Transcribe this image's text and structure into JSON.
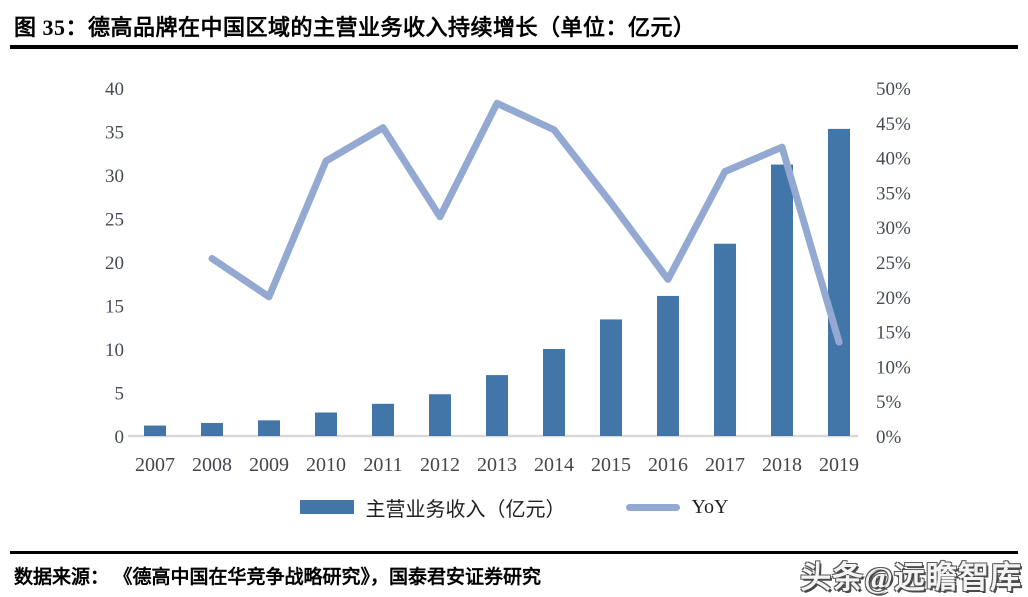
{
  "figure": {
    "title": "图 35：德高品牌在中国区域的主营业务收入持续增长（单位：亿元）",
    "source_label": "数据来源：",
    "source_text": "《德高中国在华竞争战略研究》，国泰君安证券研究",
    "watermark": "头条@远瞻智库"
  },
  "chart_data": {
    "type": "bar",
    "subtype": "combo-bar-line-dual-axis",
    "title": "德高品牌在中国区域的主营业务收入持续增长（单位：亿元）",
    "categories": [
      "2007",
      "2008",
      "2009",
      "2010",
      "2011",
      "2012",
      "2013",
      "2014",
      "2015",
      "2016",
      "2017",
      "2018",
      "2019"
    ],
    "series": [
      {
        "name": "主营业务收入（亿元）",
        "type": "bar",
        "axis": "left",
        "color": "#4376a8",
        "values": [
          1.2,
          1.5,
          1.8,
          2.7,
          3.7,
          4.8,
          7.0,
          10.0,
          13.4,
          16.1,
          22.1,
          31.2,
          35.3
        ]
      },
      {
        "name": "YoY",
        "type": "line",
        "axis": "right",
        "unit": "%",
        "color": "#94a9d2",
        "values": [
          null,
          25.5,
          20.0,
          39.5,
          44.3,
          31.5,
          47.8,
          44.0,
          33.5,
          22.5,
          38.0,
          41.5,
          13.5
        ]
      }
    ],
    "left_axis": {
      "min": 0,
      "max": 40,
      "step": 5,
      "ticks": [
        "0",
        "5",
        "10",
        "15",
        "20",
        "25",
        "30",
        "35",
        "40"
      ]
    },
    "right_axis": {
      "min": 0,
      "max": 50,
      "step": 5,
      "ticks": [
        "0%",
        "5%",
        "10%",
        "15%",
        "20%",
        "25%",
        "30%",
        "35%",
        "40%",
        "45%",
        "50%"
      ]
    },
    "grid": "off",
    "legend_position": "bottom",
    "baseline_color": "#d8d8d8"
  }
}
